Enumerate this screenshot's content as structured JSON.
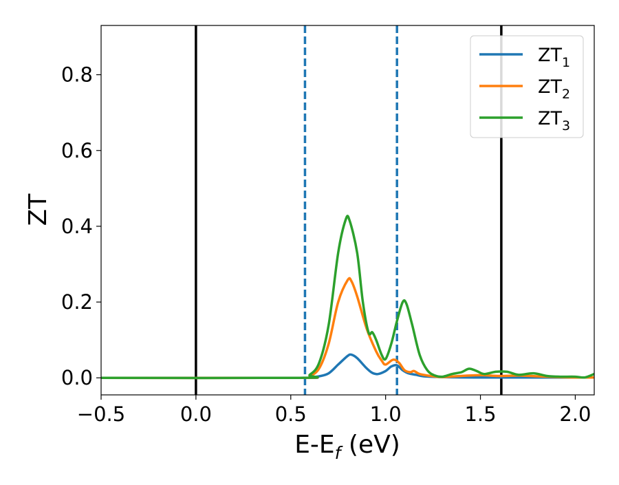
{
  "chart_data": {
    "type": "line",
    "xlabel": "E-E",
    "xlabel_sub": "f",
    "xlabel_unit": " (eV)",
    "ylabel": "ZT",
    "xlim": [
      -0.5,
      2.1
    ],
    "ylim": [
      -0.045,
      0.93
    ],
    "x_ticks": [
      -0.5,
      0.0,
      0.5,
      1.0,
      1.5,
      2.0
    ],
    "x_tick_labels": [
      "−0.5",
      "0.0",
      "0.5",
      "1.0",
      "1.5",
      "2.0"
    ],
    "y_ticks": [
      0.0,
      0.2,
      0.4,
      0.6,
      0.8
    ],
    "y_tick_labels": [
      "0.0",
      "0.2",
      "0.4",
      "0.6",
      "0.8"
    ],
    "grid": false,
    "legend_position": "top-right",
    "vertical_lines": [
      {
        "x": 0.0,
        "style": "solid",
        "color": "#000000"
      },
      {
        "x": 1.61,
        "style": "solid",
        "color": "#000000"
      },
      {
        "x": 0.575,
        "style": "dashed",
        "color": "#1f77b4"
      },
      {
        "x": 1.06,
        "style": "dashed",
        "color": "#1f77b4"
      }
    ],
    "series": [
      {
        "name": "ZT",
        "name_sub": "1",
        "color": "#1f77b4",
        "points": [
          [
            -0.5,
            0
          ],
          [
            0.55,
            0
          ],
          [
            0.6,
            0.001
          ],
          [
            0.65,
            0.004
          ],
          [
            0.7,
            0.012
          ],
          [
            0.75,
            0.035
          ],
          [
            0.8,
            0.058
          ],
          [
            0.82,
            0.061
          ],
          [
            0.85,
            0.052
          ],
          [
            0.9,
            0.025
          ],
          [
            0.93,
            0.013
          ],
          [
            0.96,
            0.01
          ],
          [
            1.0,
            0.018
          ],
          [
            1.03,
            0.03
          ],
          [
            1.06,
            0.033
          ],
          [
            1.09,
            0.02
          ],
          [
            1.12,
            0.012
          ],
          [
            1.16,
            0.008
          ],
          [
            1.2,
            0.004
          ],
          [
            1.3,
            0.002
          ],
          [
            1.5,
            0.001
          ],
          [
            2.1,
            0.001
          ]
        ]
      },
      {
        "name": "ZT",
        "name_sub": "2",
        "color": "#ff7f0e",
        "points": [
          [
            -0.5,
            0
          ],
          [
            0.55,
            0
          ],
          [
            0.6,
            0.005
          ],
          [
            0.65,
            0.025
          ],
          [
            0.7,
            0.09
          ],
          [
            0.75,
            0.2
          ],
          [
            0.8,
            0.258
          ],
          [
            0.82,
            0.255
          ],
          [
            0.85,
            0.215
          ],
          [
            0.9,
            0.13
          ],
          [
            0.95,
            0.07
          ],
          [
            0.98,
            0.045
          ],
          [
            1.0,
            0.035
          ],
          [
            1.04,
            0.048
          ],
          [
            1.07,
            0.04
          ],
          [
            1.1,
            0.02
          ],
          [
            1.13,
            0.015
          ],
          [
            1.15,
            0.018
          ],
          [
            1.18,
            0.01
          ],
          [
            1.25,
            0.004
          ],
          [
            1.3,
            0.002
          ],
          [
            1.4,
            0.005
          ],
          [
            1.5,
            0.007
          ],
          [
            1.6,
            0.005
          ],
          [
            1.7,
            0.006
          ],
          [
            1.8,
            0.004
          ],
          [
            1.9,
            0.002
          ],
          [
            2.0,
            0.001
          ],
          [
            2.1,
            0.001
          ]
        ]
      },
      {
        "name": "ZT",
        "name_sub": "3",
        "color": "#2ca02c",
        "points": [
          [
            -0.5,
            0
          ],
          [
            0.55,
            0
          ],
          [
            0.6,
            0.008
          ],
          [
            0.65,
            0.04
          ],
          [
            0.7,
            0.14
          ],
          [
            0.75,
            0.33
          ],
          [
            0.79,
            0.418
          ],
          [
            0.81,
            0.415
          ],
          [
            0.85,
            0.33
          ],
          [
            0.88,
            0.2
          ],
          [
            0.91,
            0.12
          ],
          [
            0.93,
            0.12
          ],
          [
            0.95,
            0.1
          ],
          [
            0.98,
            0.06
          ],
          [
            1.0,
            0.05
          ],
          [
            1.03,
            0.09
          ],
          [
            1.06,
            0.15
          ],
          [
            1.09,
            0.2
          ],
          [
            1.11,
            0.195
          ],
          [
            1.14,
            0.14
          ],
          [
            1.18,
            0.06
          ],
          [
            1.22,
            0.02
          ],
          [
            1.26,
            0.006
          ],
          [
            1.3,
            0.003
          ],
          [
            1.35,
            0.01
          ],
          [
            1.4,
            0.015
          ],
          [
            1.44,
            0.024
          ],
          [
            1.48,
            0.018
          ],
          [
            1.52,
            0.01
          ],
          [
            1.58,
            0.016
          ],
          [
            1.64,
            0.016
          ],
          [
            1.7,
            0.008
          ],
          [
            1.78,
            0.012
          ],
          [
            1.85,
            0.005
          ],
          [
            1.92,
            0.003
          ],
          [
            2.0,
            0.003
          ],
          [
            2.05,
            0.001
          ],
          [
            2.1,
            0.01
          ]
        ]
      }
    ]
  }
}
